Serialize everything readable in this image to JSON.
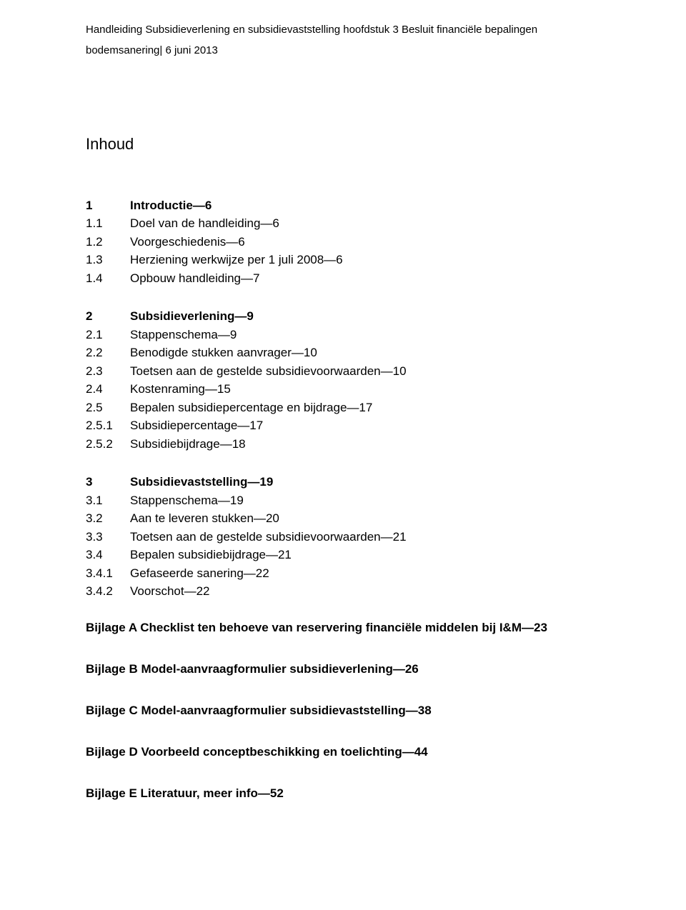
{
  "header": {
    "line1": "Handleiding Subsidieverlening en subsidievaststelling hoofdstuk 3 Besluit financiële bepalingen",
    "line2": "bodemsanering| 6 juni 2013"
  },
  "title": "Inhoud",
  "sections": [
    {
      "heading": {
        "num": "1",
        "text": "Introductie—6"
      },
      "rows": [
        {
          "num": "1.1",
          "text": "Doel van de handleiding—6"
        },
        {
          "num": "1.2",
          "text": "Voorgeschiedenis—6"
        },
        {
          "num": "1.3",
          "text": "Herziening werkwijze per 1 juli 2008—6"
        },
        {
          "num": "1.4",
          "text": "Opbouw handleiding—7"
        }
      ]
    },
    {
      "heading": {
        "num": "2",
        "text": "Subsidieverlening—9"
      },
      "rows": [
        {
          "num": "2.1",
          "text": "Stappenschema—9"
        },
        {
          "num": "2.2",
          "text": "Benodigde stukken aanvrager—10"
        },
        {
          "num": "2.3",
          "text": "Toetsen aan de gestelde subsidievoorwaarden—10"
        },
        {
          "num": "2.4",
          "text": "Kostenraming—15"
        },
        {
          "num": "2.5",
          "text": "Bepalen subsidiepercentage en bijdrage—17"
        },
        {
          "num": "2.5.1",
          "text": "Subsidiepercentage—17"
        },
        {
          "num": "2.5.2",
          "text": "Subsidiebijdrage—18"
        }
      ]
    },
    {
      "heading": {
        "num": "3",
        "text": "Subsidievaststelling—19"
      },
      "rows": [
        {
          "num": "3.1",
          "text": "Stappenschema—19"
        },
        {
          "num": "3.2",
          "text": "Aan te leveren stukken—20"
        },
        {
          "num": "3.3",
          "text": "Toetsen aan de gestelde subsidievoorwaarden—21"
        },
        {
          "num": "3.4",
          "text": "Bepalen subsidiebijdrage—21"
        },
        {
          "num": "3.4.1",
          "text": "Gefaseerde sanering—22"
        },
        {
          "num": "3.4.2",
          "text": "Voorschot—22"
        }
      ]
    }
  ],
  "appendices": [
    "Bijlage A Checklist ten behoeve van reservering financiële middelen bij I&M—23",
    "Bijlage B Model-aanvraagformulier subsidieverlening—26",
    "Bijlage C Model-aanvraagformulier subsidievaststelling—38",
    "Bijlage D Voorbeeld conceptbeschikking en toelichting—44",
    "Bijlage E Literatuur, meer info—52"
  ]
}
